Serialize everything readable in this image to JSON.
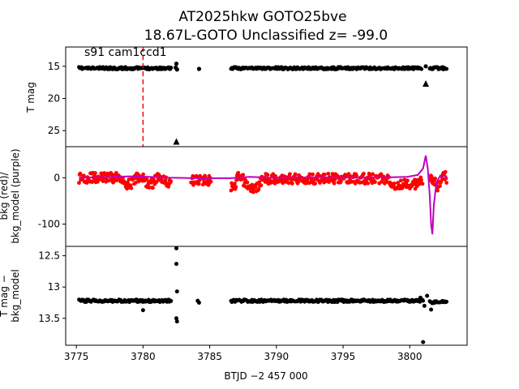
{
  "figure": {
    "title_line1": "AT2025hkw  GOTO25bve",
    "title_line2": "18.67L-GOTO Unclassified z= -99.0",
    "sector_label": "s91 cam1ccd1"
  },
  "colors": {
    "flux": "#000000",
    "background": "#ff0000",
    "background_model": "#bf00bf",
    "marker_line": "#ff0000"
  },
  "chart_data": [
    {
      "type": "scatter",
      "panel": "top",
      "ylabel": "T mag",
      "xlim": [
        3774.2,
        3804.3
      ],
      "ylim": [
        27.5,
        12.0
      ],
      "y_inverted": true,
      "yticks": [
        15,
        20,
        25
      ],
      "event_marker_x": 3780.0,
      "series": [
        {
          "segments": [
            [
              3775.2,
              3782.1,
              15.3
            ],
            [
              3786.6,
              3800.9,
              15.3
            ],
            [
              3801.5,
              3802.8,
              15.3
            ]
          ]
        },
        {
          "points": [
            [
              3782.45,
              15.2
            ],
            [
              3782.5,
              14.6
            ],
            [
              3782.55,
              15.5
            ],
            [
              3784.2,
              15.4
            ],
            [
              3801.2,
              15.0
            ]
          ]
        }
      ],
      "upper_limits": [
        [
          3782.5,
          26.8
        ],
        [
          3801.2,
          17.8
        ]
      ]
    },
    {
      "type": "scatter",
      "panel": "middle",
      "ylabel": "bkg (red)/ bkg_model (purple)",
      "xlim": [
        3774.2,
        3804.3
      ],
      "ylim": [
        -148,
        67
      ],
      "yticks": [
        0,
        -100
      ],
      "background_model": [
        [
          3775.2,
          0
        ],
        [
          3777.0,
          1
        ],
        [
          3779.0,
          3
        ],
        [
          3780.5,
          2
        ],
        [
          3782.0,
          0
        ],
        [
          3784.0,
          -1
        ],
        [
          3786.5,
          -1
        ],
        [
          3788.0,
          2
        ],
        [
          3789.5,
          0
        ],
        [
          3793.0,
          1
        ],
        [
          3796.0,
          0
        ],
        [
          3798.5,
          1
        ],
        [
          3799.8,
          2
        ],
        [
          3800.6,
          6
        ],
        [
          3801.0,
          20
        ],
        [
          3801.2,
          48
        ],
        [
          3801.35,
          20
        ],
        [
          3801.5,
          -40
        ],
        [
          3801.6,
          -100
        ],
        [
          3801.7,
          -122
        ],
        [
          3801.8,
          -60
        ],
        [
          3802.0,
          -10
        ],
        [
          3802.3,
          5
        ],
        [
          3802.8,
          3
        ]
      ],
      "background_segments": [
        [
          3775.2,
          3782.1
        ],
        [
          3783.6,
          3785.1
        ],
        [
          3786.6,
          3801.0
        ],
        [
          3801.5,
          3802.8
        ]
      ]
    },
    {
      "type": "scatter",
      "panel": "bottom",
      "ylabel": "T mag − bkg_model",
      "xlabel": "BTJD −2 457 000",
      "xlim": [
        3774.2,
        3804.3
      ],
      "ylim": [
        13.93,
        12.35
      ],
      "y_inverted": true,
      "yticks": [
        12.5,
        13.0,
        13.5
      ],
      "xticks": [
        3775,
        3780,
        3785,
        3790,
        3795,
        3800
      ],
      "segments": [
        [
          3775.2,
          3782.1,
          13.22
        ],
        [
          3786.6,
          3801.0,
          13.22
        ],
        [
          3801.5,
          3802.8,
          13.24
        ]
      ],
      "points": [
        [
          3782.5,
          12.38
        ],
        [
          3782.5,
          12.63
        ],
        [
          3782.55,
          13.07
        ],
        [
          3782.5,
          13.5
        ],
        [
          3782.55,
          13.55
        ],
        [
          3780.0,
          13.37
        ],
        [
          3784.1,
          13.22
        ],
        [
          3784.2,
          13.25
        ],
        [
          3800.8,
          13.17
        ],
        [
          3801.1,
          13.3
        ],
        [
          3801.3,
          13.14
        ],
        [
          3801.6,
          13.36
        ],
        [
          3801.0,
          13.88
        ]
      ]
    }
  ]
}
